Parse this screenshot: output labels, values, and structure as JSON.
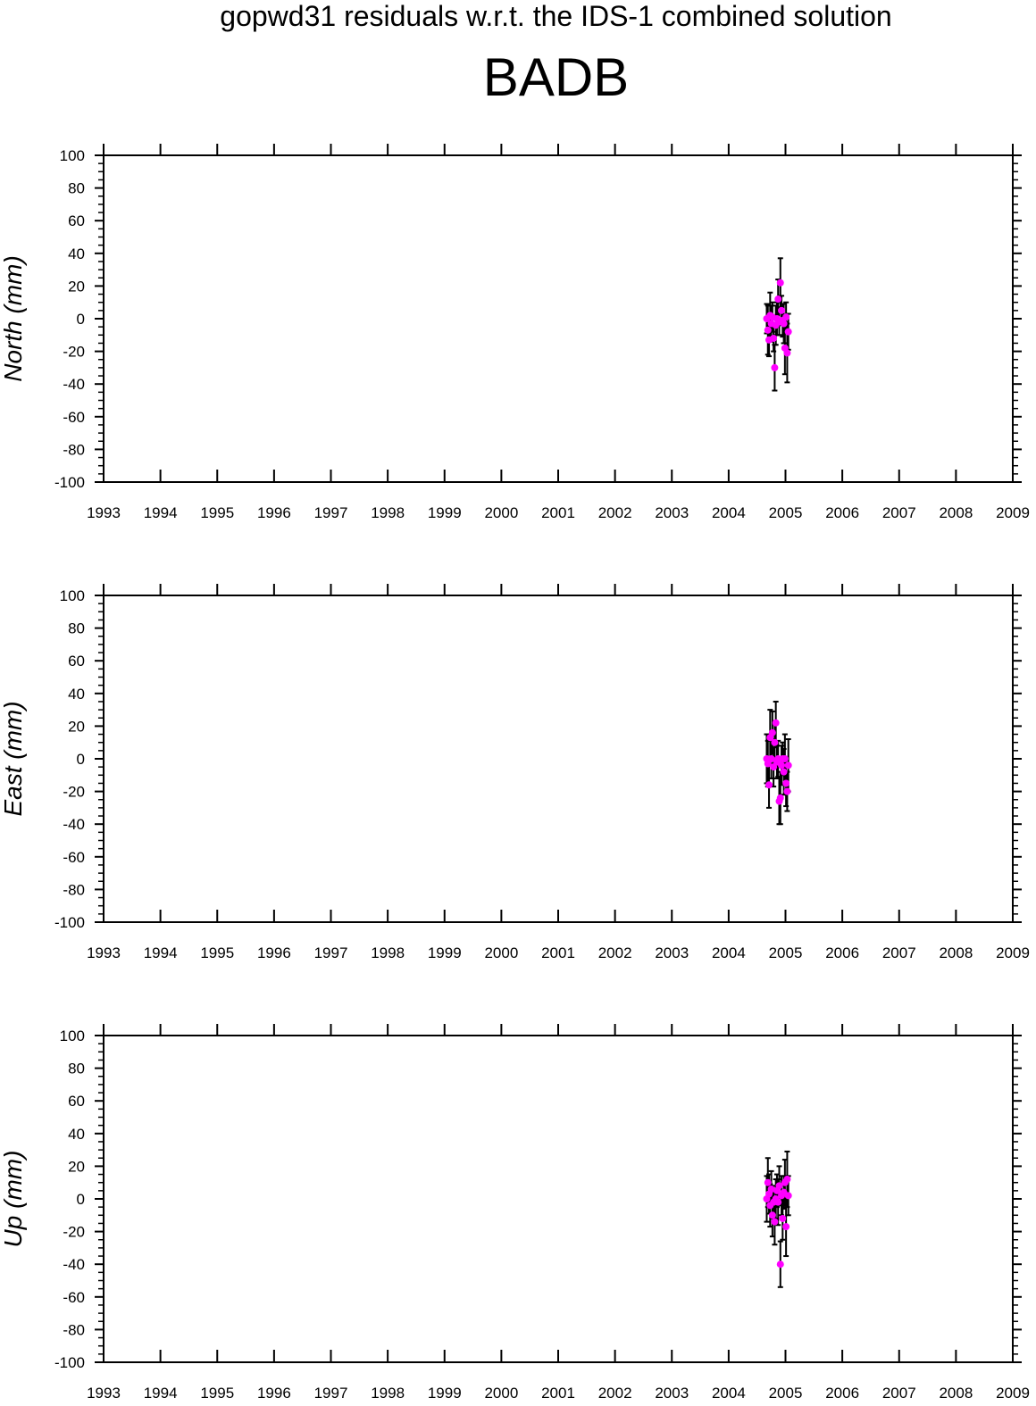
{
  "header": {
    "title": "gopwd31 residuals w.r.t. the IDS-1 combined solution",
    "station": "BADB"
  },
  "chart_data": [
    {
      "type": "scatter",
      "ylabel": "North (mm)",
      "xlim": [
        1993,
        2009
      ],
      "ylim": [
        -100,
        100
      ],
      "xticks": [
        "1993",
        "1994",
        "1995",
        "1996",
        "1997",
        "1998",
        "1999",
        "2000",
        "2001",
        "2002",
        "2003",
        "2004",
        "2005",
        "2006",
        "2007",
        "2008",
        "2009"
      ],
      "yticks": [
        "100",
        "80",
        "60",
        "40",
        "20",
        "0",
        "-20",
        "-40",
        "-60",
        "-80",
        "-100"
      ],
      "grid": false,
      "marker_color": "#ff00ff",
      "errorbar_color": "#000000",
      "points": [
        {
          "x": 2004.67,
          "y": 0,
          "err": 9
        },
        {
          "x": 2004.69,
          "y": -7,
          "err": 15
        },
        {
          "x": 2004.71,
          "y": -13,
          "err": 10
        },
        {
          "x": 2004.73,
          "y": 2,
          "err": 14
        },
        {
          "x": 2004.75,
          "y": -3,
          "err": 11
        },
        {
          "x": 2004.77,
          "y": 1,
          "err": 9
        },
        {
          "x": 2004.79,
          "y": -12,
          "err": 8
        },
        {
          "x": 2004.81,
          "y": -30,
          "err": 14
        },
        {
          "x": 2004.83,
          "y": -4,
          "err": 12
        },
        {
          "x": 2004.85,
          "y": 0,
          "err": 10
        },
        {
          "x": 2004.87,
          "y": 12,
          "err": 12
        },
        {
          "x": 2004.89,
          "y": -2,
          "err": 8
        },
        {
          "x": 2004.91,
          "y": 22,
          "err": 15
        },
        {
          "x": 2004.93,
          "y": 5,
          "err": 9
        },
        {
          "x": 2004.95,
          "y": -1,
          "err": 10
        },
        {
          "x": 2004.97,
          "y": -3,
          "err": 12
        },
        {
          "x": 2004.99,
          "y": -18,
          "err": 16
        },
        {
          "x": 2005.01,
          "y": 1,
          "err": 9
        },
        {
          "x": 2005.03,
          "y": -21,
          "err": 18
        },
        {
          "x": 2005.05,
          "y": -8,
          "err": 11
        }
      ]
    },
    {
      "type": "scatter",
      "ylabel": "East (mm)",
      "xlim": [
        1993,
        2009
      ],
      "ylim": [
        -100,
        100
      ],
      "xticks": [
        "1993",
        "1994",
        "1995",
        "1996",
        "1997",
        "1998",
        "1999",
        "2000",
        "2001",
        "2002",
        "2003",
        "2004",
        "2005",
        "2006",
        "2007",
        "2008",
        "2009"
      ],
      "yticks": [
        "100",
        "80",
        "60",
        "40",
        "20",
        "0",
        "-20",
        "-40",
        "-60",
        "-80",
        "-100"
      ],
      "grid": false,
      "marker_color": "#ff00ff",
      "errorbar_color": "#000000",
      "points": [
        {
          "x": 2004.67,
          "y": 0,
          "err": 15
        },
        {
          "x": 2004.69,
          "y": -3,
          "err": 14
        },
        {
          "x": 2004.71,
          "y": -16,
          "err": 14
        },
        {
          "x": 2004.73,
          "y": 13,
          "err": 17
        },
        {
          "x": 2004.75,
          "y": 0,
          "err": 12
        },
        {
          "x": 2004.77,
          "y": 16,
          "err": 13
        },
        {
          "x": 2004.79,
          "y": -5,
          "err": 12
        },
        {
          "x": 2004.81,
          "y": 10,
          "err": 13
        },
        {
          "x": 2004.83,
          "y": 22,
          "err": 13
        },
        {
          "x": 2004.85,
          "y": -2,
          "err": 10
        },
        {
          "x": 2004.87,
          "y": 0,
          "err": 11
        },
        {
          "x": 2004.89,
          "y": -26,
          "err": 14
        },
        {
          "x": 2004.91,
          "y": -24,
          "err": 16
        },
        {
          "x": 2004.93,
          "y": -4,
          "err": 12
        },
        {
          "x": 2004.95,
          "y": 0,
          "err": 10
        },
        {
          "x": 2004.97,
          "y": -8,
          "err": 14
        },
        {
          "x": 2004.99,
          "y": 0,
          "err": 15
        },
        {
          "x": 2005.01,
          "y": -15,
          "err": 14
        },
        {
          "x": 2005.03,
          "y": -20,
          "err": 12
        },
        {
          "x": 2005.05,
          "y": -4,
          "err": 16
        }
      ]
    },
    {
      "type": "scatter",
      "ylabel": "Up (mm)",
      "xlim": [
        1993,
        2009
      ],
      "ylim": [
        -100,
        100
      ],
      "xticks": [
        "1993",
        "1994",
        "1995",
        "1996",
        "1997",
        "1998",
        "1999",
        "2000",
        "2001",
        "2002",
        "2003",
        "2004",
        "2005",
        "2006",
        "2007",
        "2008",
        "2009"
      ],
      "yticks": [
        "100",
        "80",
        "60",
        "40",
        "20",
        "0",
        "-20",
        "-40",
        "-60",
        "-80",
        "-100"
      ],
      "grid": false,
      "marker_color": "#ff00ff",
      "errorbar_color": "#000000",
      "points": [
        {
          "x": 2004.67,
          "y": 0,
          "err": 14
        },
        {
          "x": 2004.69,
          "y": 10,
          "err": 15
        },
        {
          "x": 2004.71,
          "y": 3,
          "err": 12
        },
        {
          "x": 2004.73,
          "y": -4,
          "err": 13
        },
        {
          "x": 2004.75,
          "y": 6,
          "err": 11
        },
        {
          "x": 2004.77,
          "y": -10,
          "err": 13
        },
        {
          "x": 2004.79,
          "y": -2,
          "err": 10
        },
        {
          "x": 2004.81,
          "y": -14,
          "err": 14
        },
        {
          "x": 2004.83,
          "y": 0,
          "err": 12
        },
        {
          "x": 2004.85,
          "y": 5,
          "err": 10
        },
        {
          "x": 2004.87,
          "y": -2,
          "err": 14
        },
        {
          "x": 2004.89,
          "y": 8,
          "err": 12
        },
        {
          "x": 2004.91,
          "y": -40,
          "err": 14
        },
        {
          "x": 2004.93,
          "y": 2,
          "err": 12
        },
        {
          "x": 2004.95,
          "y": -12,
          "err": 13
        },
        {
          "x": 2004.97,
          "y": 4,
          "err": 10
        },
        {
          "x": 2004.99,
          "y": 10,
          "err": 14
        },
        {
          "x": 2005.01,
          "y": -17,
          "err": 18
        },
        {
          "x": 2005.03,
          "y": 12,
          "err": 17
        },
        {
          "x": 2005.05,
          "y": 2,
          "err": 12
        }
      ]
    }
  ]
}
